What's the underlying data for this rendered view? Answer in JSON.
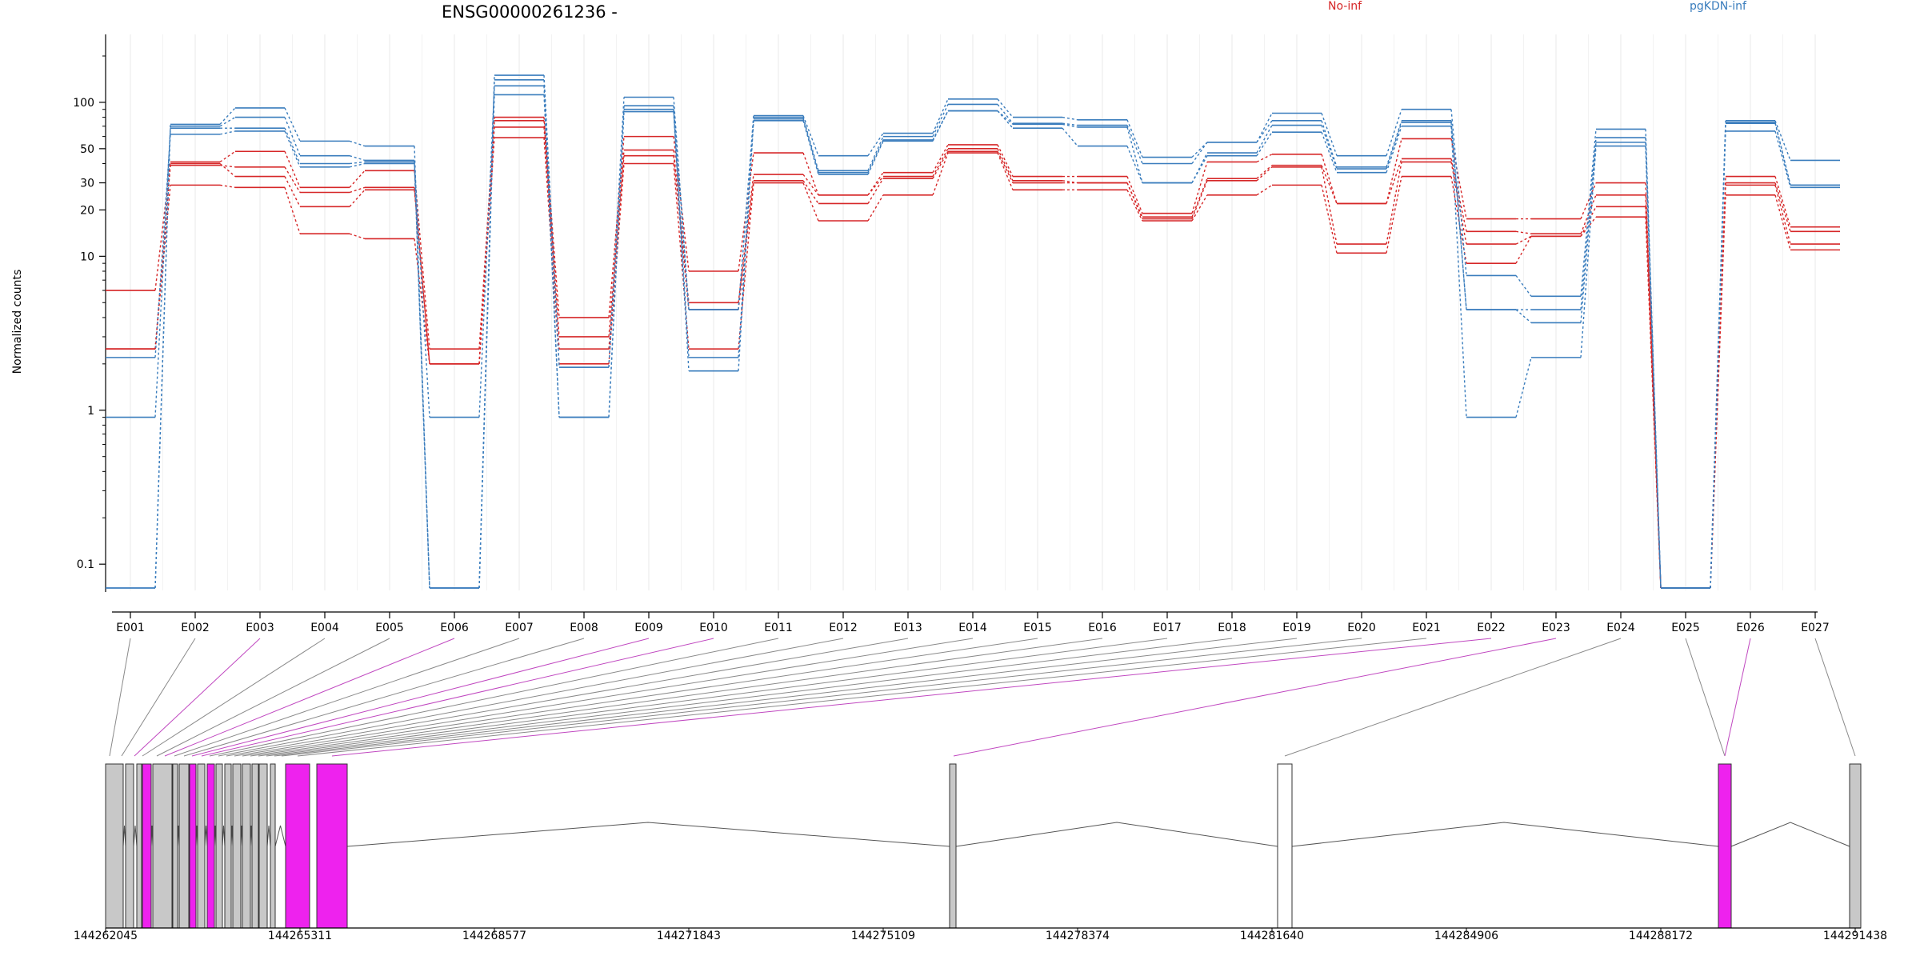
{
  "chart_data": {
    "type": "line",
    "title": "ENSG00000261236 -",
    "ylabel": "Normalized counts",
    "yscale": "log",
    "ylim": [
      0.07,
      200
    ],
    "yticks": [
      0.1,
      1,
      10,
      20,
      30,
      50,
      100
    ],
    "ytick_labels": [
      "0.1",
      "1",
      "10",
      "20",
      "30",
      "50",
      "100"
    ],
    "grid": "vertical",
    "legend": [
      {
        "name": "No-inf",
        "color": "#d62728"
      },
      {
        "name": "pgKDN-inf",
        "color": "#3a7dbd"
      }
    ],
    "categories": [
      "E001",
      "E002",
      "E003",
      "E004",
      "E005",
      "E006",
      "E007",
      "E008",
      "E009",
      "E010",
      "E011",
      "E012",
      "E013",
      "E014",
      "E015",
      "E016",
      "E017",
      "E018",
      "E019",
      "E020",
      "E021",
      "E022",
      "E023",
      "E024",
      "E025",
      "E026",
      "E027"
    ],
    "series": [
      {
        "group": "No-inf",
        "values": [
          6,
          41,
          48,
          28,
          36,
          2.5,
          80,
          4,
          60,
          8,
          47,
          25,
          35,
          53,
          33,
          33,
          19,
          41,
          46,
          22,
          58,
          17.5,
          17.5,
          30,
          0.07,
          33,
          15.5
        ]
      },
      {
        "group": "No-inf",
        "values": [
          2.5,
          39,
          38,
          26,
          28,
          2,
          76,
          3,
          49,
          5,
          34,
          25,
          33,
          50,
          31,
          30,
          18,
          32,
          39,
          22,
          43,
          14.5,
          14,
          25,
          0.07,
          30,
          14.5
        ]
      },
      {
        "group": "No-inf",
        "values": [
          2.5,
          40,
          33,
          21,
          27,
          2,
          69,
          2.5,
          45,
          4.5,
          31,
          22,
          32,
          48,
          30,
          30,
          17.5,
          31,
          38,
          12,
          41,
          12,
          13.5,
          21,
          0.07,
          29,
          12
        ]
      },
      {
        "group": "No-inf",
        "values": [
          2.5,
          29,
          28,
          14,
          13,
          2,
          59,
          2,
          40,
          2.5,
          30,
          17,
          25,
          47,
          27,
          27,
          17,
          25,
          29,
          10.5,
          33,
          9,
          13.5,
          18,
          0.07,
          25,
          11
        ]
      },
      {
        "group": "pgKDN-inf",
        "values": [
          0.07,
          72,
          92,
          56,
          52,
          0.07,
          150,
          1.9,
          108,
          4.5,
          82,
          45,
          63,
          105,
          80,
          77,
          44,
          55,
          85,
          45,
          90,
          7.5,
          5.5,
          67,
          0.07,
          76,
          42
        ]
      },
      {
        "group": "pgKDN-inf",
        "values": [
          0.07,
          70,
          80,
          45,
          42,
          0.07,
          140,
          1.9,
          95,
          4.5,
          80,
          36,
          60,
          97,
          73,
          71,
          40,
          55,
          76,
          38,
          76,
          4.5,
          4.5,
          59,
          0.07,
          74,
          29
        ]
      },
      {
        "group": "pgKDN-inf",
        "values": [
          0.9,
          68,
          68,
          40,
          41,
          0.9,
          128,
          0.9,
          90,
          2.2,
          78,
          35,
          57,
          88,
          72,
          69,
          30,
          47,
          71,
          37,
          74,
          4.5,
          3.7,
          55,
          0.07,
          73,
          29
        ]
      },
      {
        "group": "pgKDN-inf",
        "values": [
          2.2,
          62,
          65,
          38,
          40,
          0.07,
          112,
          0.9,
          87,
          1.8,
          76,
          34,
          56,
          88,
          68,
          52,
          30,
          45,
          64,
          35,
          70,
          0.9,
          2.2,
          52,
          0.07,
          65,
          28
        ]
      }
    ],
    "gene_track": {
      "axis_ticks": [
        "144262045",
        "144265311",
        "144268577",
        "144271843",
        "144275109",
        "144278374",
        "144281640",
        "144284906",
        "144288172",
        "144291438"
      ],
      "exon_colors": {
        "normal": "#c8c8c8",
        "significant": "#ee22ee",
        "noncoding": "#ffffff"
      },
      "significant_exons": [
        "E003",
        "E006",
        "E009",
        "E010",
        "E022",
        "E023",
        "E026"
      ]
    }
  }
}
